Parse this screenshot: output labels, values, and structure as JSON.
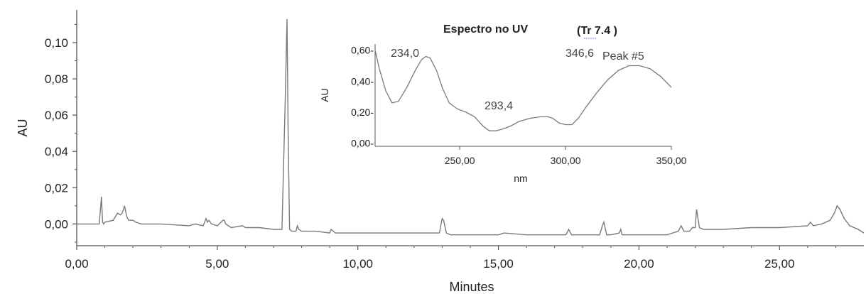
{
  "chart_data": [
    {
      "type": "line",
      "xlabel": "Minutes",
      "ylabel": "AU",
      "xlim": [
        0,
        28.0
      ],
      "ylim": [
        -0.012,
        0.118
      ],
      "xticks": [
        0,
        5,
        10,
        15,
        20,
        25
      ],
      "xtick_labels": [
        "0,00",
        "5,00",
        "10,00",
        "15,00",
        "20,00",
        "25,00"
      ],
      "yticks": [
        0.0,
        0.02,
        0.04,
        0.06,
        0.08,
        0.1
      ],
      "ytick_labels": [
        "0,00",
        "0,02",
        "0,04",
        "0,06",
        "0,08",
        "0,10"
      ],
      "line_color": "#7a7a7a",
      "grid": false,
      "series": [
        {
          "x": [
            0.0,
            0.8,
            0.88,
            0.92,
            0.96,
            1.0,
            1.3,
            1.45,
            1.55,
            1.62,
            1.7,
            1.78,
            1.85,
            2.0,
            2.1,
            2.3,
            3.0,
            4.0,
            4.2,
            4.5,
            4.6,
            4.65,
            4.7,
            4.8,
            5.0,
            5.2,
            5.25,
            5.3,
            5.5,
            5.9,
            6.0,
            6.5,
            7.0,
            7.3,
            7.42,
            7.48,
            7.52,
            7.57,
            7.65,
            7.8,
            7.85,
            7.9,
            8.0,
            8.5,
            9.0,
            9.05,
            9.2,
            10.0,
            11.0,
            12.0,
            12.9,
            13.0,
            13.05,
            13.15,
            13.3,
            14.0,
            15.0,
            15.2,
            16.0,
            17.0,
            17.4,
            17.5,
            17.6,
            18.0,
            18.6,
            18.7,
            18.75,
            18.85,
            19.0,
            19.3,
            19.35,
            19.4,
            20.0,
            21.0,
            21.4,
            21.5,
            21.6,
            21.8,
            21.9,
            22.0,
            22.05,
            22.15,
            22.3,
            23.0,
            24.0,
            25.0,
            26.0,
            26.1,
            26.2,
            26.5,
            26.8,
            26.95,
            27.05,
            27.15,
            27.3,
            27.5,
            27.8,
            28.0
          ],
          "y": [
            0.0,
            0.0,
            0.015,
            0.001,
            0.0,
            0.001,
            0.002,
            0.006,
            0.005,
            0.006,
            0.01,
            0.004,
            0.002,
            0.002,
            0.001,
            0.0,
            0.0,
            -0.001,
            0.0,
            -0.001,
            0.003,
            0.001,
            0.002,
            0.0,
            -0.001,
            0.002,
            0.002,
            0.0,
            -0.002,
            -0.001,
            -0.002,
            -0.002,
            -0.003,
            -0.003,
            0.07,
            0.113,
            0.05,
            -0.003,
            -0.004,
            -0.004,
            -0.001,
            -0.003,
            -0.004,
            -0.004,
            -0.005,
            -0.003,
            -0.005,
            -0.005,
            -0.005,
            -0.005,
            -0.005,
            0.003,
            0.002,
            -0.005,
            -0.006,
            -0.006,
            -0.006,
            -0.005,
            -0.006,
            -0.006,
            -0.006,
            -0.003,
            -0.006,
            -0.006,
            -0.006,
            -0.001,
            0.001,
            -0.006,
            -0.006,
            -0.005,
            -0.003,
            -0.006,
            -0.006,
            -0.006,
            -0.004,
            -0.001,
            -0.004,
            -0.004,
            -0.002,
            -0.002,
            0.008,
            -0.002,
            -0.003,
            -0.003,
            -0.002,
            -0.002,
            -0.001,
            0.001,
            -0.001,
            0.0,
            0.002,
            0.006,
            0.01,
            0.008,
            0.003,
            -0.001,
            -0.003,
            -0.005
          ]
        }
      ]
    },
    {
      "type": "line",
      "title_main": "Espectro no UV",
      "title_sub": "(Tr 7.4 )",
      "xlabel": "nm",
      "ylabel": "AU",
      "xlim": [
        210,
        350
      ],
      "ylim": [
        -0.02,
        0.64
      ],
      "xticks": [
        250,
        300,
        350
      ],
      "xtick_labels": [
        "250,00",
        "300,00",
        "350,00"
      ],
      "yticks": [
        0.0,
        0.2,
        0.4,
        0.6
      ],
      "ytick_labels": [
        "0,00-",
        "0,20-",
        "0,40-",
        "0,60-"
      ],
      "line_color": "#7a7a7a",
      "grid": false,
      "annotations": [
        {
          "text": "234,0",
          "x": 234.0,
          "y": 0.56
        },
        {
          "text": "293,4",
          "x": 293.4,
          "y": 0.17
        },
        {
          "text": "346,6",
          "x": 346.6,
          "y": 0.5
        },
        {
          "text": "Peak #5"
        }
      ],
      "series": [
        {
          "x": [
            210,
            212,
            215,
            218,
            221,
            225,
            229,
            232,
            234,
            236,
            239,
            242,
            245,
            249,
            253,
            257,
            261,
            264,
            267,
            270,
            274,
            278,
            283,
            288,
            292,
            294,
            297,
            300,
            303,
            306,
            310,
            315,
            320,
            325,
            330,
            335,
            340,
            345,
            350
          ],
          "y": [
            0.6,
            0.48,
            0.34,
            0.26,
            0.27,
            0.36,
            0.47,
            0.54,
            0.56,
            0.55,
            0.47,
            0.35,
            0.26,
            0.22,
            0.2,
            0.17,
            0.11,
            0.08,
            0.08,
            0.09,
            0.11,
            0.14,
            0.16,
            0.17,
            0.17,
            0.16,
            0.13,
            0.12,
            0.12,
            0.16,
            0.24,
            0.33,
            0.41,
            0.47,
            0.5,
            0.5,
            0.48,
            0.43,
            0.36
          ]
        }
      ]
    }
  ]
}
